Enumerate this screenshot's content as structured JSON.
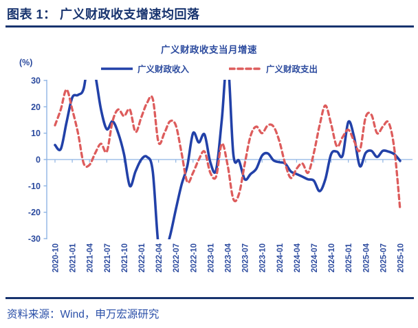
{
  "header": {
    "title": "图表 1： 广义财政收支增速均回落"
  },
  "footer": {
    "source": "资料来源：Wind，申万宏源研究"
  },
  "colors": {
    "header_navy": "#17336e",
    "text_blue": "#2b4a9e",
    "axis_blue": "#8eb4e3",
    "revenue_blue": "#2241a8",
    "expenditure_red": "#dd5c5c"
  },
  "chart_data": {
    "type": "line",
    "title": "广义财政收支当月增速",
    "y_unit": "(%)",
    "ylim": [
      -30,
      30
    ],
    "yticks": [
      30,
      20,
      10,
      0,
      -10,
      -20,
      -30
    ],
    "grid": false,
    "legend_position": "top",
    "xtick_labels": [
      "2020-10",
      "2021-01",
      "2021-04",
      "2021-07",
      "2021-10",
      "2022-01",
      "2022-04",
      "2022-07",
      "2022-10",
      "2023-01",
      "2023-04",
      "2023-07",
      "2023-10",
      "2024-01",
      "2024-04",
      "2024-07",
      "2024-10",
      "2025-01",
      "2025-04",
      "2025-07",
      "2025-10"
    ],
    "x": [
      "2020-10",
      "2020-11",
      "2020-12",
      "2021-01",
      "2021-02",
      "2021-03",
      "2021-04",
      "2021-05",
      "2021-06",
      "2021-07",
      "2021-08",
      "2021-09",
      "2021-10",
      "2021-11",
      "2021-12",
      "2022-01",
      "2022-02",
      "2022-03",
      "2022-04",
      "2022-05",
      "2022-06",
      "2022-07",
      "2022-08",
      "2022-09",
      "2022-10",
      "2022-11",
      "2022-12",
      "2023-01",
      "2023-02",
      "2023-03",
      "2023-04",
      "2023-05",
      "2023-06",
      "2023-07",
      "2023-08",
      "2023-09",
      "2023-10",
      "2023-11",
      "2023-12",
      "2024-01",
      "2024-02",
      "2024-03",
      "2024-04",
      "2024-05",
      "2024-06",
      "2024-07",
      "2024-08",
      "2024-09",
      "2024-10",
      "2024-11",
      "2024-12",
      "2025-01",
      "2025-02",
      "2025-03",
      "2025-04",
      "2025-05",
      "2025-06",
      "2025-07",
      "2025-08",
      "2025-09",
      "2025-10"
    ],
    "series": [
      {
        "name": "广义财政收入",
        "style": "solid",
        "color": "#2241a8",
        "values": [
          5.5,
          4,
          14,
          23.5,
          24.5,
          27,
          40,
          32,
          19,
          11.5,
          14.5,
          10,
          2,
          -10,
          -4.5,
          0,
          1,
          -4.5,
          -33,
          -36,
          -29,
          -19,
          -9.5,
          -2.5,
          10,
          6.5,
          9.5,
          -1,
          -4,
          15,
          38,
          2,
          -0.5,
          -7.5,
          -5.5,
          -3.5,
          1.5,
          2.3,
          -0.3,
          -1,
          -1.5,
          -4.5,
          -5.5,
          -6.5,
          -7.5,
          -8,
          -12,
          -7.5,
          2,
          3,
          1.5,
          14.3,
          8.5,
          -2.5,
          2.5,
          3.3,
          1,
          3.3,
          3,
          2,
          -0.5
        ]
      },
      {
        "name": "广义财政支出",
        "style": "dashed",
        "color": "#dd5c5c",
        "values": [
          13,
          19,
          26.5,
          19,
          10,
          -1.5,
          -2,
          2.5,
          6,
          3,
          14.5,
          19,
          16.5,
          19,
          10.5,
          16,
          21.5,
          23,
          6.5,
          10,
          14.5,
          13,
          2.5,
          -8.5,
          -5,
          0,
          3,
          -5,
          -6.5,
          6,
          -2,
          -15,
          -13,
          -1.5,
          9,
          12.5,
          10,
          13,
          12.5,
          7,
          -1.5,
          -7,
          -3.5,
          -1.5,
          -5,
          2.5,
          13,
          20.5,
          13.5,
          5,
          8.5,
          11.3,
          7,
          3.5,
          16,
          17,
          10,
          12.5,
          14,
          4,
          -19
        ]
      }
    ],
    "note": "values beyond +/-30 are clipped by the plot area"
  }
}
